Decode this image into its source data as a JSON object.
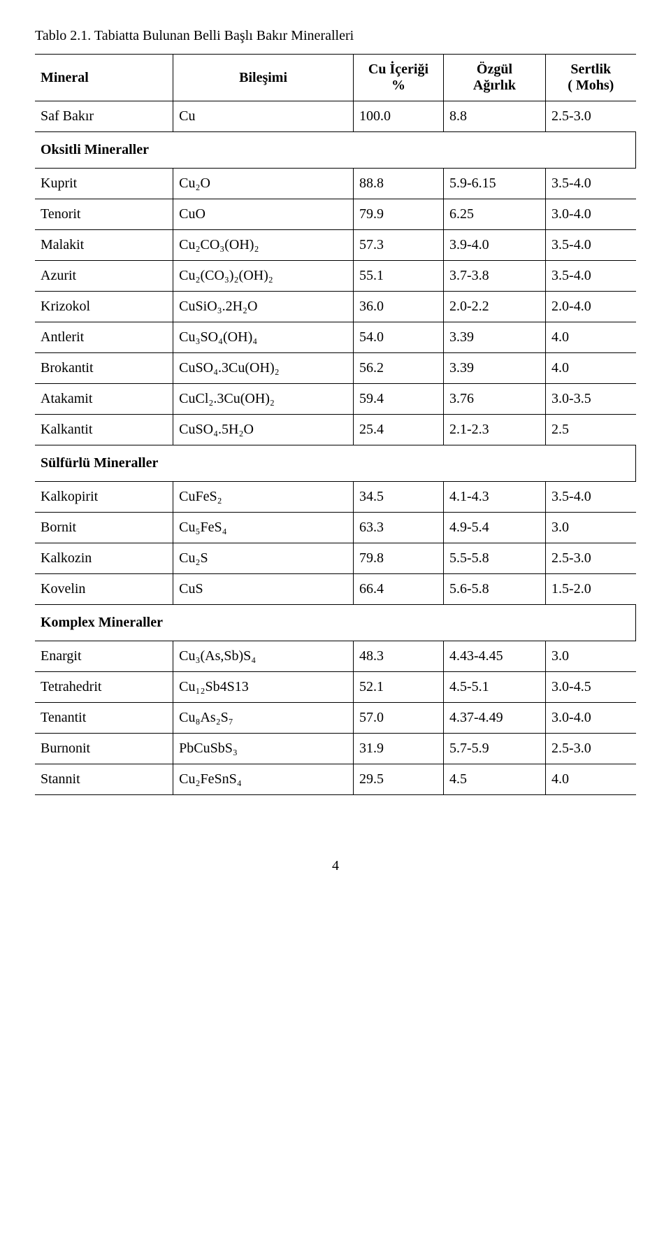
{
  "caption": "Tablo 2.1. Tabiatta Bulunan Belli Başlı Bakır Mineralleri",
  "headers": {
    "mineral": "Mineral",
    "bilesimi": "Bileşimi",
    "cu_line1": "Cu İçeriği",
    "cu_line2": "%",
    "ozgul_line1": "Özgül",
    "ozgul_line2": "Ağırlık",
    "sertlik_line1": "Sertlik",
    "sertlik_line2": "( Mohs)"
  },
  "sections": {
    "oksitli": "Oksitli Mineraller",
    "sulfurlu": "Sülfürlü Mineraller",
    "komplex": "Komplex Mineraller"
  },
  "rows": {
    "saf": {
      "m": "Saf Bakır",
      "b": "Cu",
      "cu": "100.0",
      "oz": "8.8",
      "se": "2.5-3.0"
    },
    "kuprit": {
      "m": "Kuprit",
      "b": "Cu₂O",
      "cu": "88.8",
      "oz": "5.9-6.15",
      "se": "3.5-4.0"
    },
    "tenorit": {
      "m": "Tenorit",
      "b": "CuO",
      "cu": "79.9",
      "oz": "6.25",
      "se": "3.0-4.0"
    },
    "malakit": {
      "m": "Malakit",
      "b": "Cu₂CO₃(OH)₂",
      "cu": "57.3",
      "oz": "3.9-4.0",
      "se": "3.5-4.0"
    },
    "azurit": {
      "m": "Azurit",
      "b": "Cu₂(CO₃)₂(OH)₂",
      "cu": "55.1",
      "oz": "3.7-3.8",
      "se": "3.5-4.0"
    },
    "krizokol": {
      "m": "Krizokol",
      "b": "CuSiO₃.2H₂O",
      "cu": "36.0",
      "oz": "2.0-2.2",
      "se": "2.0-4.0"
    },
    "antlerit": {
      "m": "Antlerit",
      "b": "Cu₃SO₄(OH)₄",
      "cu": "54.0",
      "oz": "3.39",
      "se": "4.0"
    },
    "brokantit": {
      "m": "Brokantit",
      "b": "CuSO₄.3Cu(OH)₂",
      "cu": "56.2",
      "oz": "3.39",
      "se": "4.0"
    },
    "atakamit": {
      "m": "Atakamit",
      "b": "CuCl₂.3Cu(OH)₂",
      "cu": "59.4",
      "oz": "3.76",
      "se": "3.0-3.5"
    },
    "kalkantit": {
      "m": "Kalkantit",
      "b": "CuSO₄.5H₂O",
      "cu": "25.4",
      "oz": "2.1-2.3",
      "se": "2.5"
    },
    "kalkopirit": {
      "m": "Kalkopirit",
      "b": "CuFeS₂",
      "cu": "34.5",
      "oz": "4.1-4.3",
      "se": "3.5-4.0"
    },
    "bornit": {
      "m": "Bornit",
      "b": "Cu₅FeS₄",
      "cu": "63.3",
      "oz": "4.9-5.4",
      "se": "3.0"
    },
    "kalkozin": {
      "m": "Kalkozin",
      "b": "Cu₂S",
      "cu": "79.8",
      "oz": "5.5-5.8",
      "se": "2.5-3.0"
    },
    "kovelin": {
      "m": "Kovelin",
      "b": "CuS",
      "cu": "66.4",
      "oz": "5.6-5.8",
      "se": "1.5-2.0"
    },
    "enargit": {
      "m": "Enargit",
      "b": "Cu₃(As,Sb)S₄",
      "cu": "48.3",
      "oz": "4.43-4.45",
      "se": "3.0"
    },
    "tetrahedrit": {
      "m": "Tetrahedrit",
      "b": "Cu₁₂Sb4S13",
      "cu": "52.1",
      "oz": "4.5-5.1",
      "se": "3.0-4.5"
    },
    "tenantit": {
      "m": "Tenantit",
      "b": "Cu₈As₂S₇",
      "cu": "57.0",
      "oz": "4.37-4.49",
      "se": "3.0-4.0"
    },
    "burnonit": {
      "m": "Burnonit",
      "b": "PbCuSbS₃",
      "cu": "31.9",
      "oz": "5.7-5.9",
      "se": "2.5-3.0"
    },
    "stannit": {
      "m": "Stannit",
      "b": "Cu₂FeSnS₄",
      "cu": "29.5",
      "oz": "4.5",
      "se": "4.0"
    }
  },
  "page_number": "4"
}
